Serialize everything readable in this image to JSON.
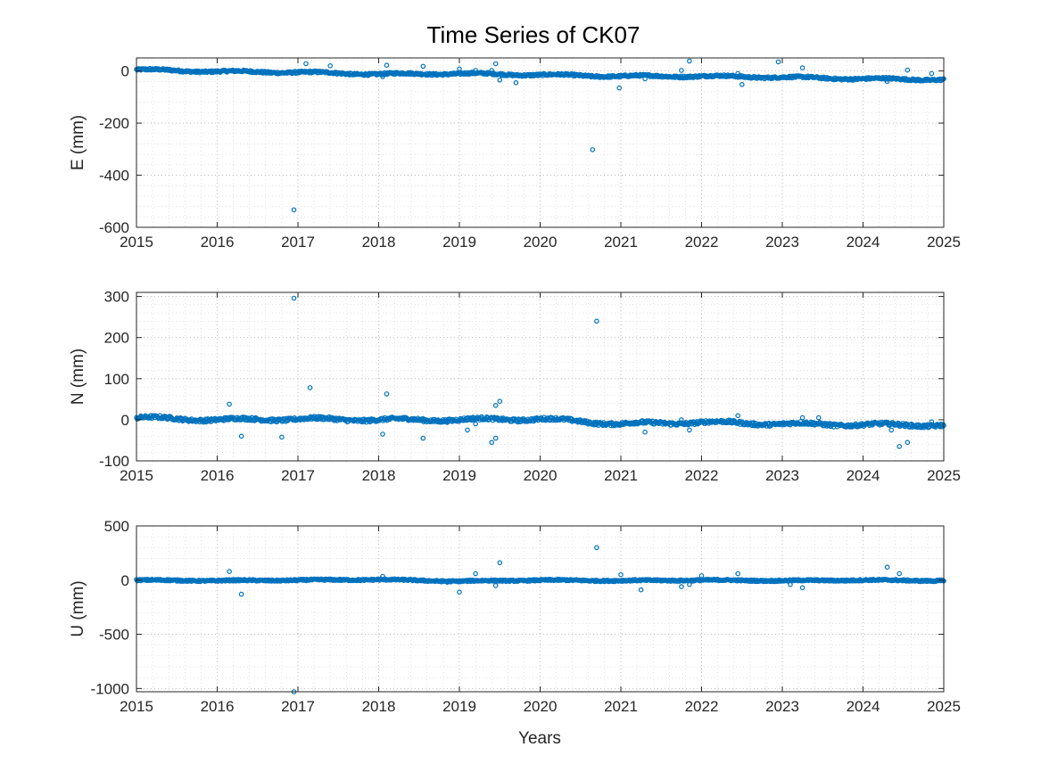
{
  "chart_data": [
    {
      "type": "scatter",
      "title": "Time Series of CK07",
      "xlabel": "",
      "ylabel": "E (mm)",
      "xlim": [
        2015,
        2025
      ],
      "ylim": [
        -600,
        50
      ],
      "xticks": [
        "2015",
        "2016",
        "2017",
        "2018",
        "2019",
        "2020",
        "2021",
        "2022",
        "2023",
        "2024",
        "2025"
      ],
      "yticks": [
        "0",
        "-200",
        "-400",
        "-600"
      ],
      "grid": "minor",
      "color": "#0072BD",
      "trend": [
        [
          2015.0,
          5
        ],
        [
          2016.0,
          -2
        ],
        [
          2017.0,
          -5
        ],
        [
          2018.0,
          -12
        ],
        [
          2019.0,
          -10
        ],
        [
          2020.0,
          -15
        ],
        [
          2021.0,
          -20
        ],
        [
          2022.0,
          -20
        ],
        [
          2023.0,
          -24
        ],
        [
          2024.0,
          -30
        ],
        [
          2025.0,
          -33
        ]
      ],
      "outliers": [
        [
          2016.95,
          -533
        ],
        [
          2017.1,
          28
        ],
        [
          2017.4,
          20
        ],
        [
          2018.05,
          -22
        ],
        [
          2018.1,
          22
        ],
        [
          2018.55,
          18
        ],
        [
          2019.0,
          8
        ],
        [
          2019.2,
          2
        ],
        [
          2019.4,
          2
        ],
        [
          2019.45,
          28
        ],
        [
          2019.5,
          -35
        ],
        [
          2019.7,
          -45
        ],
        [
          2020.65,
          -302
        ],
        [
          2020.98,
          -65
        ],
        [
          2021.3,
          -30
        ],
        [
          2021.75,
          2
        ],
        [
          2021.85,
          38
        ],
        [
          2022.45,
          -10
        ],
        [
          2022.5,
          -52
        ],
        [
          2022.95,
          35
        ],
        [
          2023.25,
          12
        ],
        [
          2024.3,
          -40
        ],
        [
          2024.55,
          3
        ],
        [
          2024.85,
          -10
        ]
      ]
    },
    {
      "type": "scatter",
      "title": "",
      "xlabel": "",
      "ylabel": "N (mm)",
      "xlim": [
        2015,
        2025
      ],
      "ylim": [
        -100,
        310
      ],
      "xticks": [
        "2015",
        "2016",
        "2017",
        "2018",
        "2019",
        "2020",
        "2021",
        "2022",
        "2023",
        "2024",
        "2025"
      ],
      "yticks": [
        "300",
        "200",
        "100",
        "0",
        "-100"
      ],
      "grid": "minor",
      "color": "#0072BD",
      "trend": [
        [
          2015.0,
          5
        ],
        [
          2016.0,
          0
        ],
        [
          2017.0,
          2
        ],
        [
          2018.0,
          0
        ],
        [
          2019.0,
          0
        ],
        [
          2020.0,
          2
        ],
        [
          2021.0,
          -10
        ],
        [
          2022.0,
          -6
        ],
        [
          2023.0,
          -10
        ],
        [
          2024.0,
          -12
        ],
        [
          2025.0,
          -13
        ]
      ],
      "outliers": [
        [
          2016.15,
          38
        ],
        [
          2016.3,
          -40
        ],
        [
          2016.8,
          -42
        ],
        [
          2016.95,
          296
        ],
        [
          2017.15,
          78
        ],
        [
          2018.05,
          -35
        ],
        [
          2018.1,
          63
        ],
        [
          2018.55,
          -45
        ],
        [
          2019.1,
          -25
        ],
        [
          2019.2,
          -10
        ],
        [
          2019.4,
          -55
        ],
        [
          2019.45,
          -45
        ],
        [
          2019.45,
          35
        ],
        [
          2019.5,
          45
        ],
        [
          2020.7,
          240
        ],
        [
          2021.3,
          -30
        ],
        [
          2021.75,
          0
        ],
        [
          2021.85,
          -25
        ],
        [
          2022.45,
          10
        ],
        [
          2023.25,
          5
        ],
        [
          2023.45,
          5
        ],
        [
          2024.35,
          -25
        ],
        [
          2024.45,
          -65
        ],
        [
          2024.55,
          -55
        ],
        [
          2024.85,
          -5
        ]
      ]
    },
    {
      "type": "scatter",
      "title": "",
      "xlabel": "Years",
      "ylabel": "U (mm)",
      "xlim": [
        2015,
        2025
      ],
      "ylim": [
        -1030,
        500
      ],
      "xticks": [
        "2015",
        "2016",
        "2017",
        "2018",
        "2019",
        "2020",
        "2021",
        "2022",
        "2023",
        "2024",
        "2025"
      ],
      "yticks": [
        "500",
        "0",
        "-500",
        "-1000"
      ],
      "grid": "minor",
      "color": "#0072BD",
      "trend": [
        [
          2015.0,
          0
        ],
        [
          2016.0,
          -5
        ],
        [
          2017.0,
          0
        ],
        [
          2018.0,
          5
        ],
        [
          2019.0,
          -10
        ],
        [
          2020.0,
          0
        ],
        [
          2021.0,
          -5
        ],
        [
          2022.0,
          0
        ],
        [
          2023.0,
          -5
        ],
        [
          2024.0,
          0
        ],
        [
          2025.0,
          -5
        ]
      ],
      "outliers": [
        [
          2016.15,
          80
        ],
        [
          2016.3,
          -130
        ],
        [
          2016.95,
          -1030
        ],
        [
          2018.05,
          35
        ],
        [
          2018.85,
          -20
        ],
        [
          2019.0,
          -110
        ],
        [
          2019.2,
          60
        ],
        [
          2019.45,
          -50
        ],
        [
          2019.5,
          160
        ],
        [
          2020.7,
          300
        ],
        [
          2021.0,
          50
        ],
        [
          2021.25,
          -90
        ],
        [
          2021.75,
          -60
        ],
        [
          2021.85,
          -40
        ],
        [
          2022.0,
          40
        ],
        [
          2022.45,
          60
        ],
        [
          2023.1,
          -40
        ],
        [
          2023.25,
          -70
        ],
        [
          2024.3,
          120
        ],
        [
          2024.45,
          60
        ],
        [
          2024.85,
          -10
        ]
      ]
    }
  ]
}
